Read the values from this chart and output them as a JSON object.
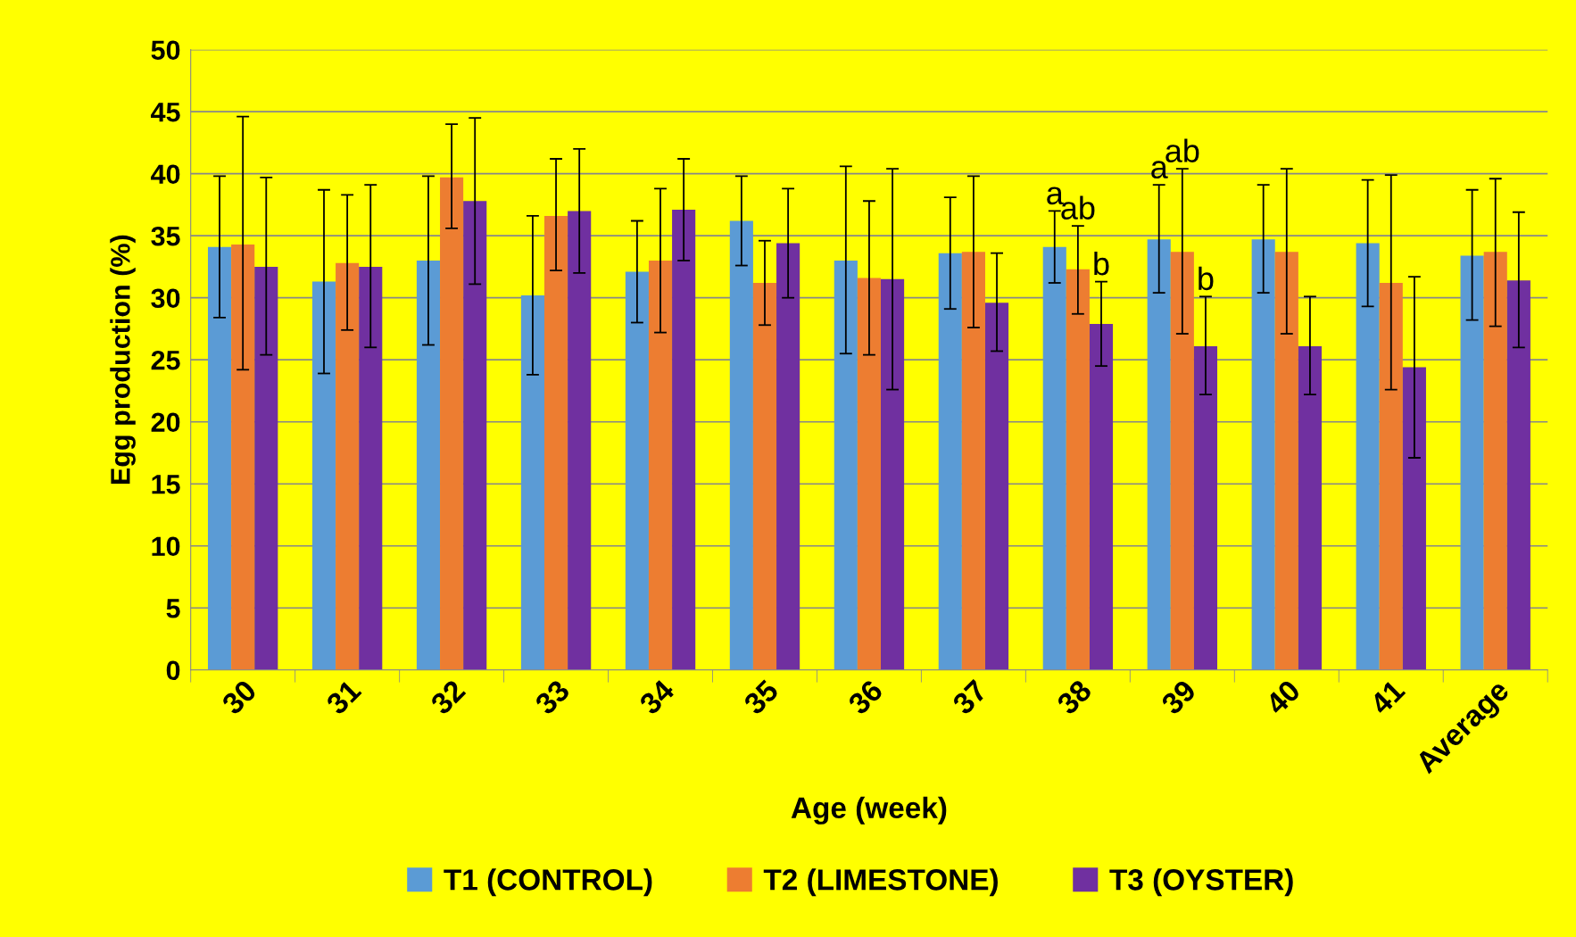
{
  "chart_data": {
    "type": "bar",
    "xlabel": "Age (week)",
    "ylabel": "Egg production (%)",
    "categories": [
      "30",
      "31",
      "32",
      "33",
      "34",
      "35",
      "36",
      "37",
      "38",
      "39",
      "40",
      "41",
      "Average"
    ],
    "series": [
      {
        "name": "T1 (CONTROL)",
        "color": "#5b9bd5",
        "values": [
          34.1,
          31.3,
          33.0,
          30.2,
          32.1,
          36.2,
          33.0,
          33.6,
          34.1,
          34.7,
          34.7,
          34.4,
          33.4
        ],
        "errors": [
          [
            28.4,
            39.8
          ],
          [
            23.9,
            38.7
          ],
          [
            26.2,
            39.8
          ],
          [
            23.8,
            36.6
          ],
          [
            28.0,
            36.2
          ],
          [
            32.6,
            39.8
          ],
          [
            25.5,
            40.6
          ],
          [
            29.1,
            38.1
          ],
          [
            31.2,
            37.0
          ],
          [
            30.4,
            39.1
          ],
          [
            30.4,
            39.1
          ],
          [
            29.3,
            39.5
          ],
          [
            28.2,
            38.7
          ]
        ]
      },
      {
        "name": "T2 (LIMESTONE)",
        "color": "#ed7d31",
        "values": [
          34.3,
          32.8,
          39.7,
          36.6,
          33.0,
          31.2,
          31.6,
          33.7,
          32.3,
          33.7,
          33.7,
          31.2,
          33.7
        ],
        "errors": [
          [
            24.2,
            44.6
          ],
          [
            27.4,
            38.3
          ],
          [
            35.6,
            44.0
          ],
          [
            32.2,
            41.2
          ],
          [
            27.2,
            38.8
          ],
          [
            27.8,
            34.6
          ],
          [
            25.4,
            37.8
          ],
          [
            27.6,
            39.8
          ],
          [
            28.7,
            35.8
          ],
          [
            27.1,
            40.4
          ],
          [
            27.1,
            40.4
          ],
          [
            22.6,
            39.9
          ],
          [
            27.7,
            39.6
          ]
        ]
      },
      {
        "name": "T3 (OYSTER)",
        "color": "#7030a0",
        "values": [
          32.5,
          32.5,
          37.8,
          37.0,
          37.1,
          34.4,
          31.5,
          29.6,
          27.9,
          26.1,
          26.1,
          24.4,
          31.4
        ],
        "errors": [
          [
            25.4,
            39.7
          ],
          [
            26.0,
            39.1
          ],
          [
            31.1,
            44.5
          ],
          [
            32.0,
            42.0
          ],
          [
            33.0,
            41.2
          ],
          [
            30.0,
            38.8
          ],
          [
            22.6,
            40.4
          ],
          [
            25.7,
            33.6
          ],
          [
            24.5,
            31.3
          ],
          [
            22.2,
            30.1
          ],
          [
            22.2,
            30.1
          ],
          [
            17.1,
            31.7
          ],
          [
            26.0,
            36.9
          ]
        ]
      }
    ],
    "annotations": [
      {
        "text": "a",
        "x": "38",
        "y": 34.1
      },
      {
        "text": "ab",
        "x": "38",
        "y": 32.3
      },
      {
        "text": "b",
        "x": "38",
        "y": 27.9
      },
      {
        "text": "a",
        "x": "39",
        "y": 34.7
      },
      {
        "text": "ab",
        "x": "39",
        "y": 33.7
      },
      {
        "text": "b",
        "x": "39",
        "y": 26.1
      }
    ],
    "ylim": [
      0,
      50
    ],
    "yticks": [
      0,
      5,
      10,
      15,
      20,
      25,
      30,
      35,
      40,
      45,
      50
    ],
    "grid": "y",
    "legend": "bottom"
  }
}
